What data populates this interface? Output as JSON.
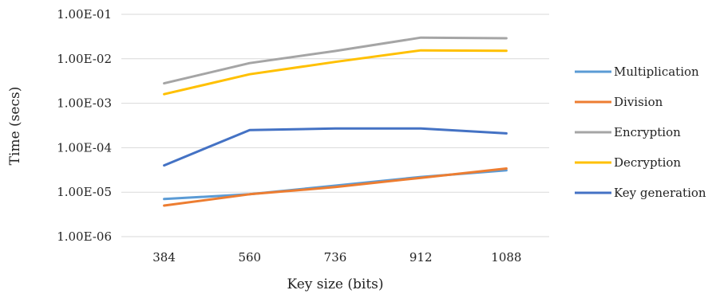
{
  "chart_data": {
    "type": "line",
    "xlabel": "Key size (bits)",
    "ylabel": "Time (secs)",
    "yscale": "log",
    "ylim": [
      1e-06,
      0.1
    ],
    "grid": true,
    "legend_position": "right",
    "categories": [
      "384",
      "560",
      "736",
      "912",
      "1088"
    ],
    "y_ticks": [
      1e-06,
      1e-05,
      0.0001,
      0.001,
      0.01,
      0.1
    ],
    "y_tick_labels": [
      "1.00E-06",
      "1.00E-05",
      "1.00E-04",
      "1.00E-03",
      "1.00E-02",
      "1.00E-01"
    ],
    "series": [
      {
        "name": "Multiplication",
        "color": "#5B9BD5",
        "values": [
          7e-06,
          9e-06,
          1.4e-05,
          2.2e-05,
          3.1e-05
        ]
      },
      {
        "name": "Division",
        "color": "#ED7D31",
        "values": [
          5e-06,
          9e-06,
          1.3e-05,
          2.1e-05,
          3.4e-05
        ]
      },
      {
        "name": "Encryption",
        "color": "#A5A5A5",
        "values": [
          0.0028,
          0.008,
          0.015,
          0.03,
          0.029
        ]
      },
      {
        "name": "Decryption",
        "color": "#FFC000",
        "values": [
          0.0016,
          0.0045,
          0.0085,
          0.0155,
          0.0152
        ]
      },
      {
        "name": "Key generation",
        "color": "#4472C4",
        "values": [
          4e-05,
          0.00025,
          0.00027,
          0.00027,
          0.00021
        ]
      }
    ]
  }
}
